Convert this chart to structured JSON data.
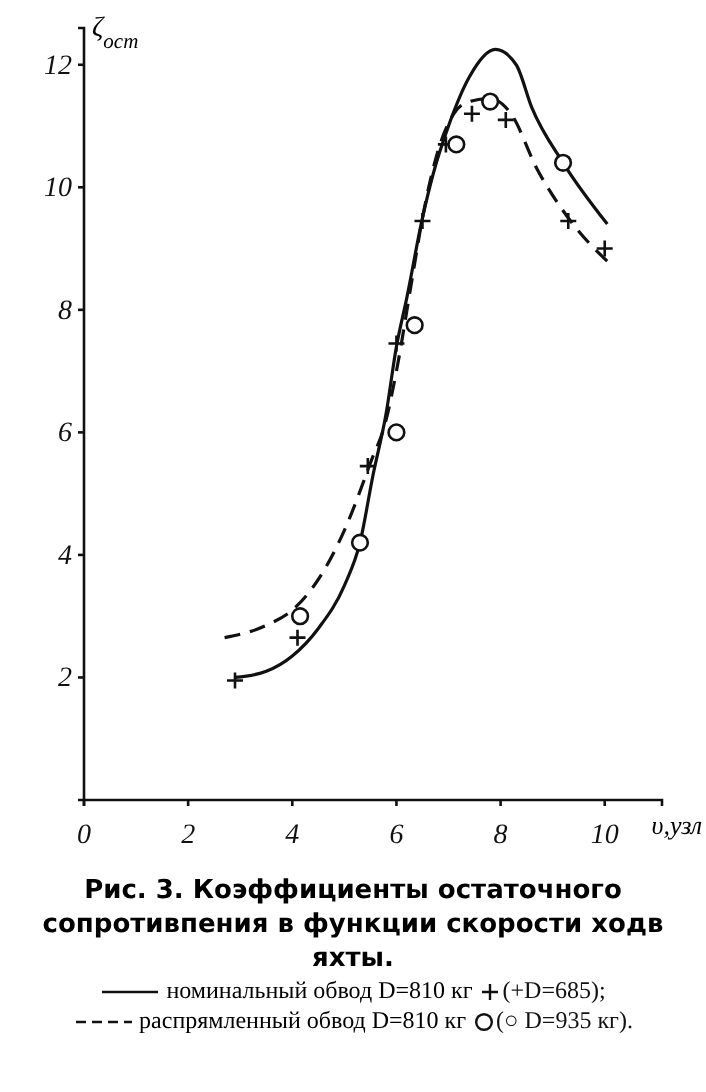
{
  "chart_data": {
    "type": "line",
    "title": "Рис. 3. Коэффициенты остаточного сопротивпения в функции скорости ходв яхты.",
    "xlabel": "υ,узл",
    "ylabel": "ζ$_{ост}$",
    "xlim": [
      0,
      11.1
    ],
    "ylim": [
      0,
      12.6
    ],
    "xticks": [
      0,
      2,
      4,
      6,
      8,
      10
    ],
    "yticks": [
      2,
      4,
      6,
      8,
      10,
      12
    ],
    "grid": false,
    "legend": "bottom",
    "series": [
      {
        "name": "номинальный обвод D=810 кг",
        "line_style": "solid",
        "marker": "none",
        "color": "#111111",
        "x": [
          2.9,
          3.5,
          4.0,
          4.5,
          5.0,
          5.3,
          5.55,
          5.8,
          6.0,
          6.2,
          6.5,
          6.7,
          7.0,
          7.4,
          7.9,
          8.3,
          8.6,
          9.2,
          10.05
        ],
        "values": [
          2.0,
          2.1,
          2.35,
          2.8,
          3.5,
          4.2,
          5.3,
          6.3,
          7.4,
          8.2,
          9.5,
          10.2,
          11.0,
          11.8,
          12.25,
          12.0,
          11.3,
          10.4,
          9.4
        ]
      },
      {
        "name": "(+D=685);",
        "type": "scatter",
        "marker": "cross",
        "color": "#111111",
        "x": [
          2.9,
          4.1,
          5.45,
          6.0,
          6.5,
          6.95,
          7.45,
          8.1,
          9.3,
          10.0
        ],
        "values": [
          1.95,
          2.65,
          5.45,
          7.45,
          9.45,
          10.7,
          11.2,
          11.1,
          9.45,
          9.0
        ]
      },
      {
        "name": "распрямленный обвод D=810 кг",
        "line_style": "dashed",
        "marker": "none",
        "color": "#111111",
        "x": [
          2.7,
          3.5,
          4.0,
          4.5,
          5.0,
          5.5,
          5.8,
          6.0,
          6.3,
          6.5,
          6.8,
          7.1,
          7.4,
          7.8,
          8.2,
          8.7,
          9.3,
          10.1
        ],
        "values": [
          2.65,
          2.85,
          3.1,
          3.6,
          4.4,
          5.5,
          6.2,
          7.0,
          8.5,
          9.5,
          10.6,
          11.2,
          11.4,
          11.45,
          11.2,
          10.3,
          9.5,
          8.75
        ]
      },
      {
        "name": "(○ D=935 кг).",
        "type": "scatter",
        "marker": "circle",
        "color": "#111111",
        "x": [
          4.15,
          5.3,
          6.0,
          6.35,
          7.15,
          7.8,
          9.2
        ],
        "values": [
          3.0,
          4.2,
          6.0,
          7.75,
          10.7,
          11.4,
          10.4
        ]
      }
    ]
  }
}
